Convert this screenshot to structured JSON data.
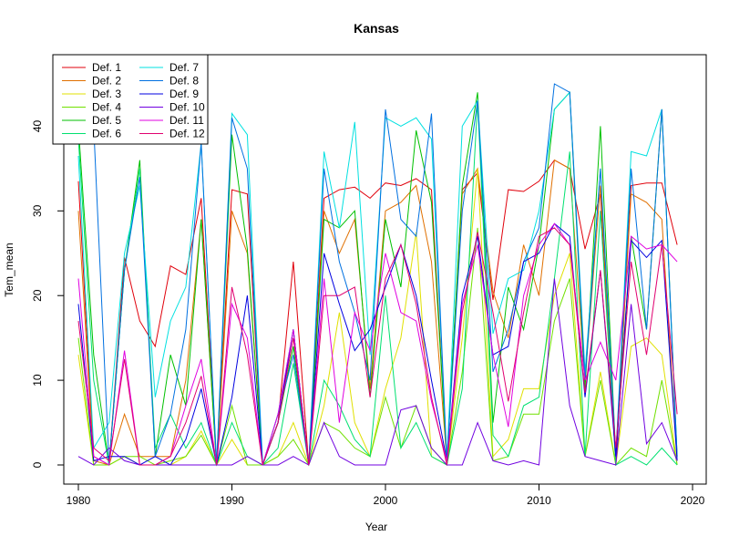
{
  "chart_data": {
    "type": "line",
    "title": "Kansas",
    "xlabel": "Year",
    "ylabel": "Tem_mean",
    "xlim": [
      1980,
      2020
    ],
    "ylim": [
      0,
      45
    ],
    "xticks": [
      1980,
      1990,
      2000,
      2010,
      2020
    ],
    "yticks": [
      0,
      10,
      20,
      30,
      40
    ],
    "legend_position": "top-left",
    "x": [
      1980,
      1981,
      1982,
      1983,
      1984,
      1985,
      1986,
      1987,
      1988,
      1989,
      1990,
      1991,
      1992,
      1993,
      1994,
      1995,
      1996,
      1997,
      1998,
      1999,
      2000,
      2001,
      2002,
      2003,
      2004,
      2005,
      2006,
      2007,
      2008,
      2009,
      2010,
      2011,
      2012,
      2013,
      2014,
      2015,
      2016,
      2017,
      2018,
      2019
    ],
    "series": [
      {
        "name": "Def. 1",
        "color": "#e0000b",
        "values": [
          33.5,
          1.0,
          0.0,
          24.5,
          17.0,
          14.0,
          23.5,
          22.5,
          31.5,
          0.0,
          32.5,
          32.0,
          0.0,
          5.0,
          24.0,
          0.0,
          31.5,
          32.5,
          32.8,
          31.5,
          33.3,
          33.0,
          33.8,
          32.5,
          0.5,
          32.5,
          34.5,
          19.5,
          32.5,
          32.3,
          33.5,
          36.0,
          35.0,
          25.5,
          32.0,
          0.0,
          33.0,
          33.3,
          33.3,
          26.0
        ]
      },
      {
        "name": "Def. 2",
        "color": "#e07000",
        "values": [
          30.0,
          0.5,
          0.0,
          6.0,
          1.0,
          1.0,
          1.0,
          10.0,
          29.0,
          0.0,
          30.0,
          25.0,
          0.0,
          5.0,
          16.0,
          0.0,
          30.0,
          25.0,
          29.0,
          9.0,
          30.0,
          31.0,
          33.0,
          24.0,
          0.5,
          32.0,
          35.0,
          20.5,
          15.0,
          26.0,
          20.0,
          36.0,
          35.0,
          10.0,
          33.0,
          1.0,
          32.0,
          31.0,
          29.0,
          0.5
        ]
      },
      {
        "name": "Def. 3",
        "color": "#e0e000",
        "values": [
          13.0,
          0.0,
          0.0,
          1.0,
          0.0,
          0.0,
          0.0,
          1.0,
          4.0,
          0.0,
          3.0,
          0.0,
          0.0,
          1.0,
          5.0,
          0.0,
          7.0,
          18.0,
          5.0,
          1.0,
          9.0,
          15.0,
          27.5,
          1.0,
          0.0,
          15.0,
          35.0,
          1.0,
          3.0,
          9.0,
          9.0,
          20.0,
          25.0,
          1.0,
          11.0,
          0.0,
          14.0,
          15.0,
          13.0,
          0.0
        ]
      },
      {
        "name": "Def. 4",
        "color": "#70e000",
        "values": [
          15.0,
          0.0,
          0.0,
          1.0,
          1.0,
          0.0,
          0.5,
          1.0,
          3.5,
          0.0,
          7.0,
          0.0,
          0.0,
          1.0,
          3.0,
          0.0,
          5.0,
          4.0,
          2.0,
          1.0,
          8.0,
          2.0,
          7.0,
          2.0,
          0.0,
          11.0,
          28.0,
          0.5,
          1.0,
          6.0,
          6.0,
          17.0,
          22.0,
          1.0,
          10.0,
          0.0,
          2.0,
          1.0,
          10.0,
          0.0
        ]
      },
      {
        "name": "Def. 5",
        "color": "#00c000",
        "values": [
          40.0,
          13.0,
          0.0,
          23.0,
          36.0,
          1.0,
          13.0,
          7.0,
          29.0,
          0.0,
          39.0,
          25.5,
          0.0,
          5.0,
          14.0,
          0.0,
          29.0,
          28.0,
          30.0,
          8.0,
          29.0,
          21.0,
          39.5,
          31.0,
          0.5,
          33.0,
          44.0,
          5.0,
          21.0,
          16.0,
          26.0,
          42.0,
          44.0,
          9.0,
          40.0,
          1.0,
          27.0,
          16.0,
          42.0,
          1.0
        ]
      },
      {
        "name": "Def. 6",
        "color": "#00e070",
        "values": [
          38.5,
          10.0,
          0.0,
          23.0,
          35.0,
          2.0,
          6.0,
          2.0,
          5.0,
          0.0,
          5.0,
          1.0,
          0.0,
          2.0,
          12.0,
          0.0,
          10.0,
          7.0,
          3.0,
          1.0,
          20.0,
          2.0,
          5.0,
          1.0,
          0.0,
          9.0,
          43.0,
          3.5,
          1.0,
          7.0,
          8.0,
          22.0,
          37.0,
          1.0,
          30.0,
          0.0,
          1.0,
          0.0,
          2.0,
          0.0
        ]
      },
      {
        "name": "Def. 7",
        "color": "#00e0e0",
        "values": [
          36.5,
          2.0,
          5.0,
          25.0,
          33.0,
          8.0,
          17.0,
          21.0,
          38.0,
          0.0,
          41.5,
          39.0,
          0.0,
          6.0,
          16.0,
          0.0,
          37.0,
          28.0,
          40.5,
          13.0,
          41.0,
          40.0,
          41.0,
          38.5,
          0.5,
          40.0,
          43.0,
          15.5,
          22.0,
          23.0,
          30.0,
          42.0,
          44.0,
          11.0,
          35.0,
          1.0,
          37.0,
          36.5,
          42.0,
          0.5
        ]
      },
      {
        "name": "Def. 8",
        "color": "#0070e0",
        "values": [
          38.0,
          40.0,
          0.0,
          23.0,
          34.0,
          1.0,
          6.0,
          16.0,
          38.0,
          0.0,
          41.0,
          35.0,
          0.0,
          6.0,
          13.0,
          0.0,
          35.0,
          24.0,
          18.0,
          10.0,
          42.0,
          29.0,
          27.0,
          41.5,
          0.5,
          30.0,
          43.0,
          11.0,
          16.0,
          24.0,
          28.0,
          45.0,
          44.0,
          10.0,
          35.0,
          1.0,
          35.0,
          16.0,
          42.0,
          1.0
        ]
      },
      {
        "name": "Def. 9",
        "color": "#0000e0",
        "values": [
          19.0,
          0.5,
          1.0,
          1.0,
          0.0,
          1.0,
          0.0,
          3.0,
          9.0,
          0.0,
          8.0,
          20.0,
          0.0,
          5.0,
          16.0,
          0.0,
          25.0,
          19.0,
          13.5,
          16.0,
          21.0,
          26.0,
          20.0,
          10.0,
          0.5,
          20.0,
          27.0,
          13.0,
          14.0,
          24.0,
          25.0,
          28.5,
          27.0,
          8.0,
          23.0,
          1.0,
          26.5,
          24.5,
          26.5,
          0.5
        ]
      },
      {
        "name": "Def. 10",
        "color": "#7000e0",
        "values": [
          1.0,
          0.0,
          2.0,
          0.5,
          0.0,
          0.0,
          0.0,
          0.0,
          0.0,
          0.0,
          0.0,
          1.0,
          0.0,
          0.0,
          1.0,
          0.0,
          5.0,
          1.0,
          0.0,
          0.0,
          0.0,
          6.5,
          7.0,
          2.0,
          0.0,
          0.0,
          5.0,
          0.5,
          0.0,
          0.5,
          0.0,
          22.0,
          7.0,
          1.0,
          0.5,
          0.0,
          19.0,
          2.5,
          5.0,
          0.5
        ]
      },
      {
        "name": "Def. 11",
        "color": "#e000e0",
        "values": [
          22.0,
          1.0,
          0.0,
          13.5,
          0.0,
          0.0,
          1.0,
          7.0,
          12.5,
          0.0,
          19.0,
          15.0,
          0.0,
          6.0,
          16.0,
          0.0,
          22.0,
          5.0,
          18.0,
          13.5,
          25.0,
          18.0,
          17.0,
          7.5,
          0.5,
          19.0,
          26.0,
          13.0,
          4.5,
          20.0,
          26.0,
          28.5,
          26.0,
          10.0,
          14.5,
          10.0,
          27.0,
          25.5,
          26.0,
          24.0
        ]
      },
      {
        "name": "Def. 12",
        "color": "#e00070",
        "values": [
          17.0,
          2.0,
          0.5,
          12.5,
          0.0,
          0.0,
          1.0,
          5.0,
          10.5,
          0.0,
          21.0,
          13.0,
          0.0,
          5.0,
          15.0,
          0.0,
          20.0,
          20.0,
          21.0,
          8.0,
          22.0,
          26.0,
          19.0,
          8.0,
          0.0,
          18.0,
          27.5,
          18.0,
          7.5,
          18.0,
          27.0,
          28.0,
          26.0,
          8.5,
          23.0,
          2.0,
          24.0,
          13.0,
          26.0,
          6.0
        ]
      }
    ]
  }
}
